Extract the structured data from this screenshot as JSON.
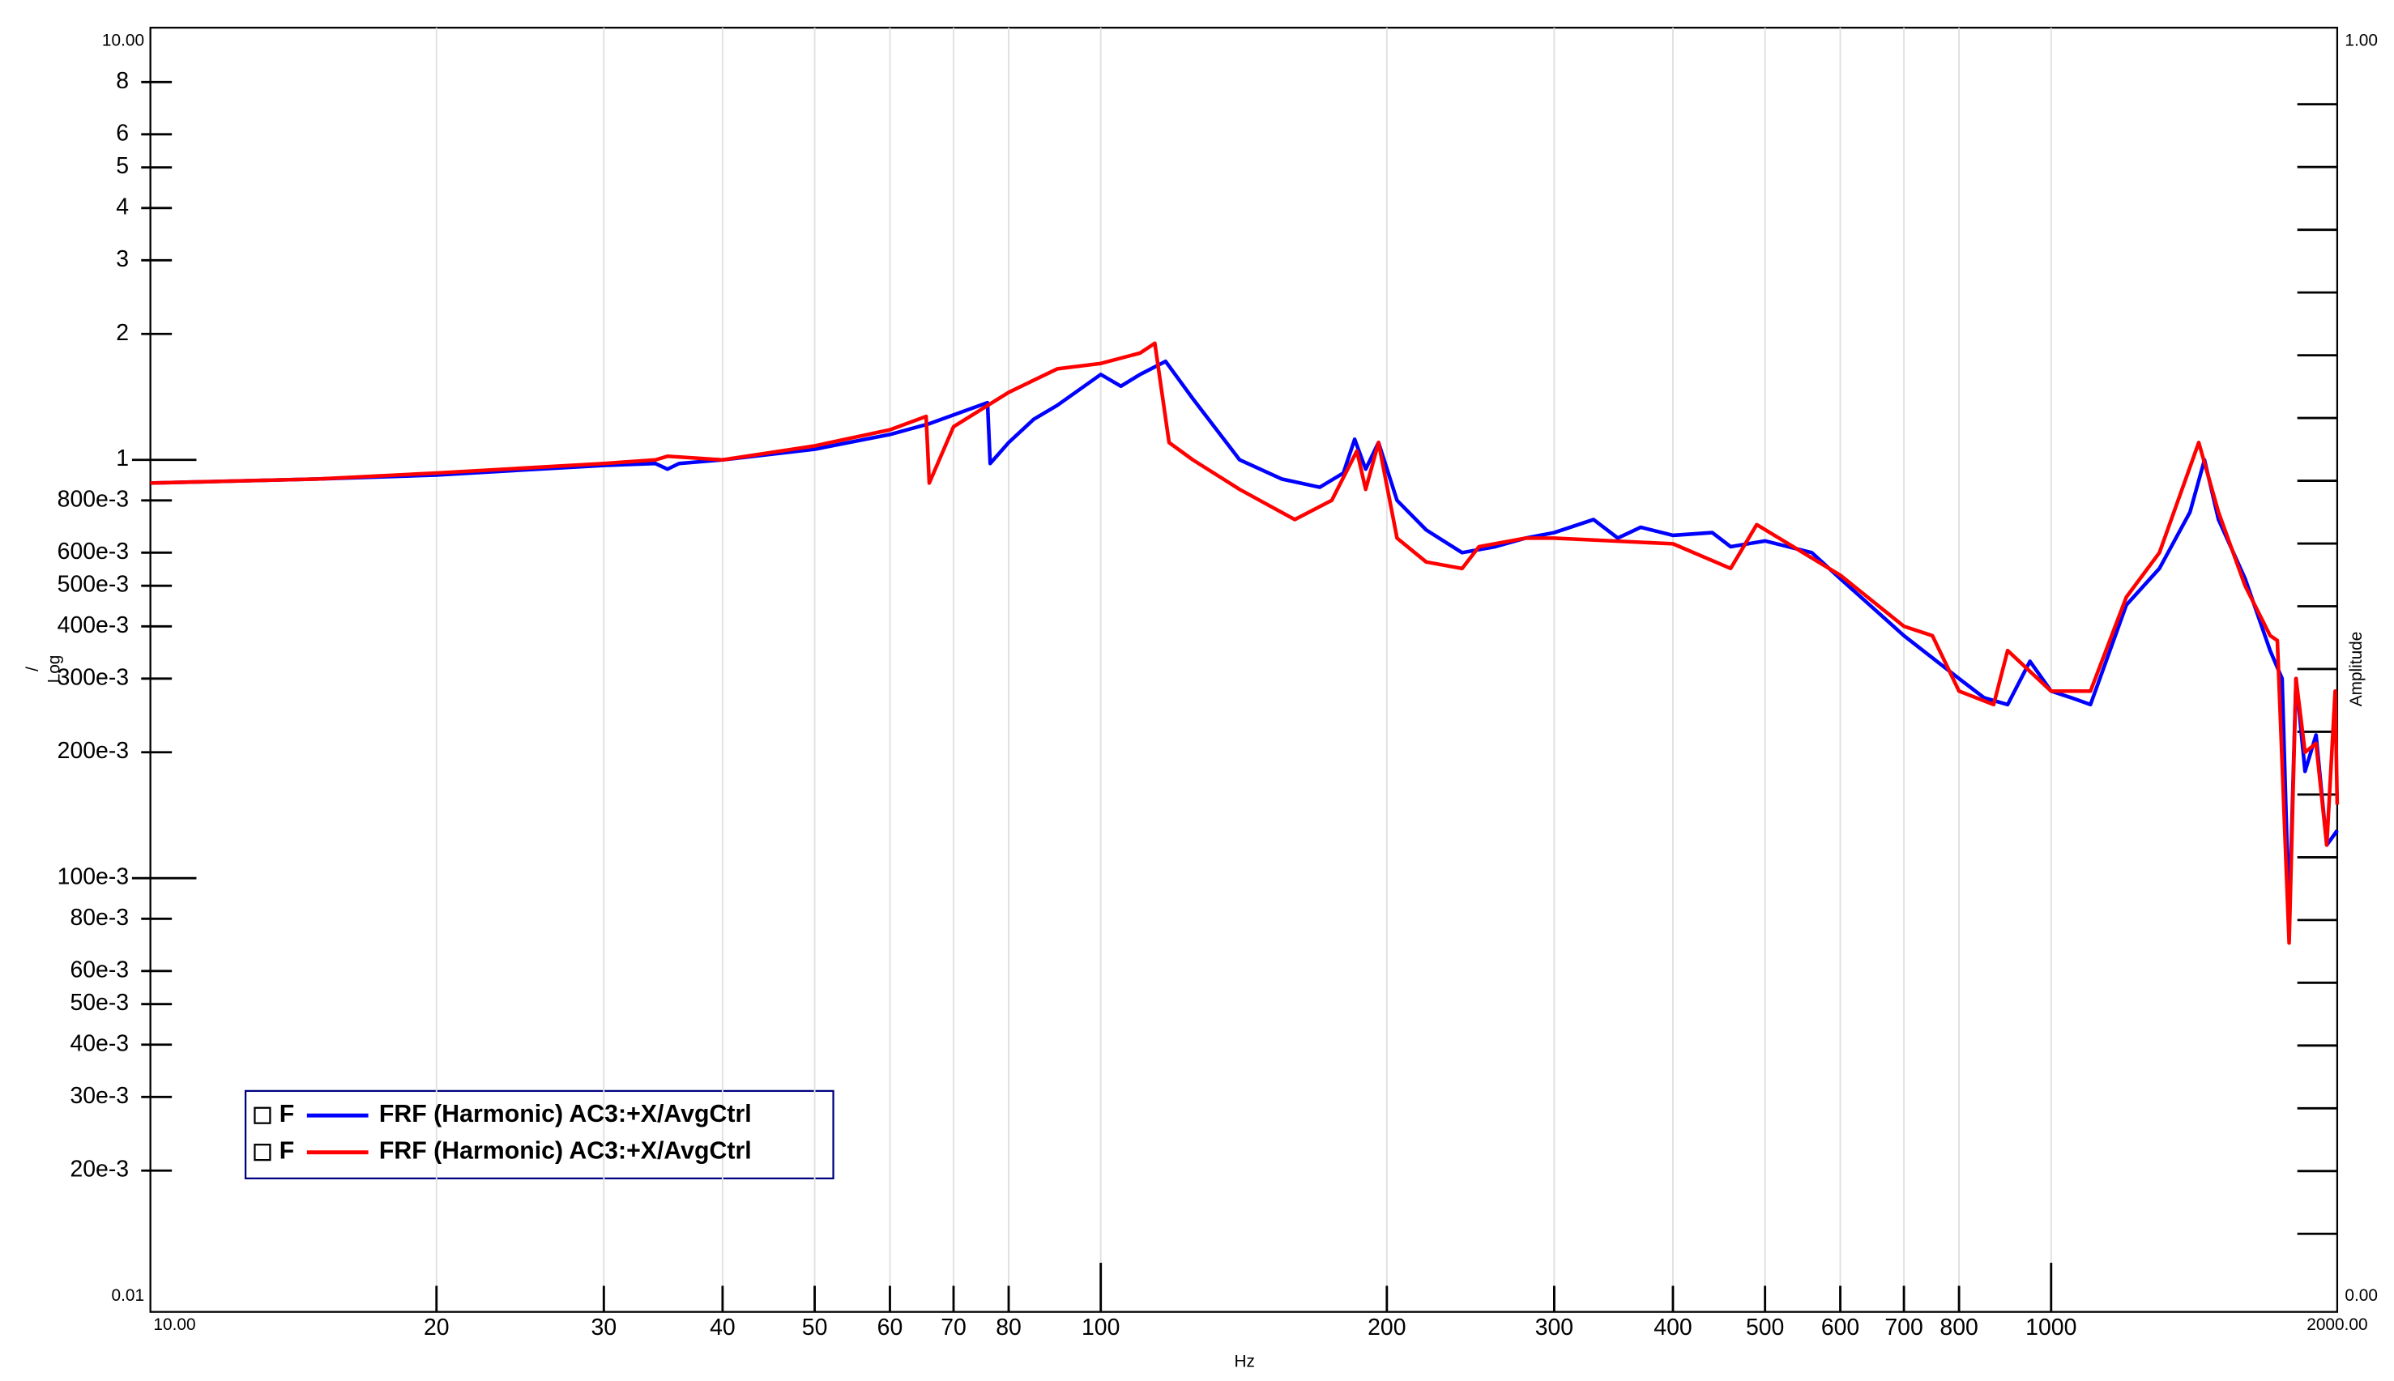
{
  "chart_data": {
    "type": "line",
    "x_label": "Hz",
    "y_label": "Log",
    "y_unit": "/",
    "y2_label": "Amplitude",
    "xscale": "log",
    "yscale": "log",
    "grid": "x",
    "legend": "lower left",
    "xlim": [
      10,
      2000
    ],
    "ylim": [
      0.01,
      10
    ],
    "y2lim": [
      0,
      1
    ],
    "xticks": [
      {
        "value": 10,
        "label": "10.00"
      },
      20,
      30,
      40,
      50,
      60,
      70,
      80,
      100,
      200,
      300,
      400,
      500,
      600,
      700,
      800,
      1000,
      {
        "value": 2000,
        "label": "2000.00"
      }
    ],
    "yticks": [
      {
        "value": 0.01,
        "label": "0.01"
      },
      {
        "value": 0.02,
        "label": "20e-3"
      },
      {
        "value": 0.03,
        "label": "30e-3"
      },
      {
        "value": 0.04,
        "label": "40e-3"
      },
      {
        "value": 0.05,
        "label": "50e-3"
      },
      {
        "value": 0.06,
        "label": "60e-3"
      },
      {
        "value": 0.08,
        "label": "80e-3"
      },
      {
        "value": 0.1,
        "label": "100e-3"
      },
      {
        "value": 0.2,
        "label": "200e-3"
      },
      {
        "value": 0.3,
        "label": "300e-3"
      },
      {
        "value": 0.4,
        "label": "400e-3"
      },
      {
        "value": 0.5,
        "label": "500e-3"
      },
      {
        "value": 0.6,
        "label": "600e-3"
      },
      {
        "value": 0.8,
        "label": "800e-3"
      },
      1,
      2,
      3,
      4,
      5,
      6,
      8,
      {
        "value": 10,
        "label": "10.00"
      }
    ],
    "y2ticks": [
      {
        "value": 0,
        "label": "0.00"
      },
      {
        "value": 0.05,
        "label": null
      },
      {
        "value": 0.1,
        "label": null
      },
      {
        "value": 0.15,
        "label": null
      },
      {
        "value": 0.2,
        "label": null
      },
      {
        "value": 0.25,
        "label": null
      },
      {
        "value": 0.3,
        "label": null
      },
      {
        "value": 0.35,
        "label": null
      },
      {
        "value": 0.4,
        "label": null
      },
      {
        "value": 0.45,
        "label": null
      },
      {
        "value": 0.5,
        "label": null
      },
      {
        "value": 0.55,
        "label": null
      },
      {
        "value": 0.6,
        "label": null
      },
      {
        "value": 0.65,
        "label": null
      },
      {
        "value": 0.7,
        "label": null
      },
      {
        "value": 0.75,
        "label": null
      },
      {
        "value": 0.8,
        "label": null
      },
      {
        "value": 0.85,
        "label": null
      },
      {
        "value": 0.9,
        "label": null
      },
      {
        "value": 0.95,
        "label": null
      },
      {
        "value": 1,
        "label": "1.00"
      }
    ],
    "series": [
      {
        "name": "FRF (Harmonic) AC3:+X/AvgCtrl",
        "legend_prefix": "F",
        "color": "#0000ff",
        "x": [
          10,
          15,
          20,
          30,
          34,
          35,
          36,
          40,
          50,
          60,
          66,
          76,
          76.5,
          80,
          85,
          90,
          100,
          105,
          110,
          117,
          125,
          140,
          155,
          170,
          180,
          185,
          190,
          196,
          205,
          220,
          240,
          260,
          280,
          300,
          330,
          350,
          370,
          400,
          440,
          460,
          500,
          560,
          600,
          700,
          800,
          850,
          900,
          950,
          1000,
          1050,
          1100,
          1200,
          1300,
          1400,
          1450,
          1500,
          1600,
          1700,
          1750,
          1780,
          1810,
          1850,
          1900,
          1950,
          2000
        ],
        "values": [
          0.88,
          0.9,
          0.92,
          0.97,
          0.98,
          0.95,
          0.98,
          1.0,
          1.06,
          1.15,
          1.22,
          1.37,
          0.98,
          1.1,
          1.25,
          1.35,
          1.6,
          1.5,
          1.6,
          1.72,
          1.4,
          1.0,
          0.9,
          0.86,
          0.93,
          1.12,
          0.95,
          1.1,
          0.8,
          0.68,
          0.6,
          0.62,
          0.65,
          0.67,
          0.72,
          0.65,
          0.69,
          0.66,
          0.67,
          0.62,
          0.64,
          0.6,
          0.52,
          0.38,
          0.3,
          0.27,
          0.26,
          0.33,
          0.28,
          0.27,
          0.26,
          0.45,
          0.55,
          0.75,
          1.0,
          0.72,
          0.52,
          0.35,
          0.3,
          0.08,
          0.3,
          0.18,
          0.22,
          0.12,
          0.13
        ]
      },
      {
        "name": "FRF (Harmonic) AC3:+X/AvgCtrl",
        "legend_prefix": "F",
        "color": "#ff0000",
        "x": [
          10,
          15,
          20,
          30,
          34,
          35,
          40,
          50,
          60,
          65.5,
          66,
          70,
          80,
          90,
          100,
          110,
          114,
          118,
          125,
          140,
          160,
          175,
          186,
          190,
          196,
          205,
          220,
          240,
          250,
          280,
          300,
          400,
          460,
          490,
          600,
          700,
          750,
          800,
          870,
          900,
          1000,
          1100,
          1200,
          1300,
          1430,
          1500,
          1600,
          1700,
          1730,
          1780,
          1810,
          1850,
          1900,
          1950,
          1990,
          2000
        ],
        "values": [
          0.88,
          0.9,
          0.93,
          0.98,
          1.0,
          1.02,
          1.0,
          1.08,
          1.18,
          1.27,
          0.88,
          1.2,
          1.45,
          1.65,
          1.7,
          1.8,
          1.9,
          1.1,
          1.0,
          0.85,
          0.72,
          0.8,
          1.05,
          0.85,
          1.1,
          0.65,
          0.57,
          0.55,
          0.62,
          0.65,
          0.65,
          0.63,
          0.55,
          0.7,
          0.53,
          0.4,
          0.38,
          0.28,
          0.26,
          0.35,
          0.28,
          0.28,
          0.47,
          0.6,
          1.1,
          0.75,
          0.5,
          0.38,
          0.37,
          0.07,
          0.3,
          0.2,
          0.21,
          0.12,
          0.28,
          0.15
        ]
      }
    ]
  }
}
